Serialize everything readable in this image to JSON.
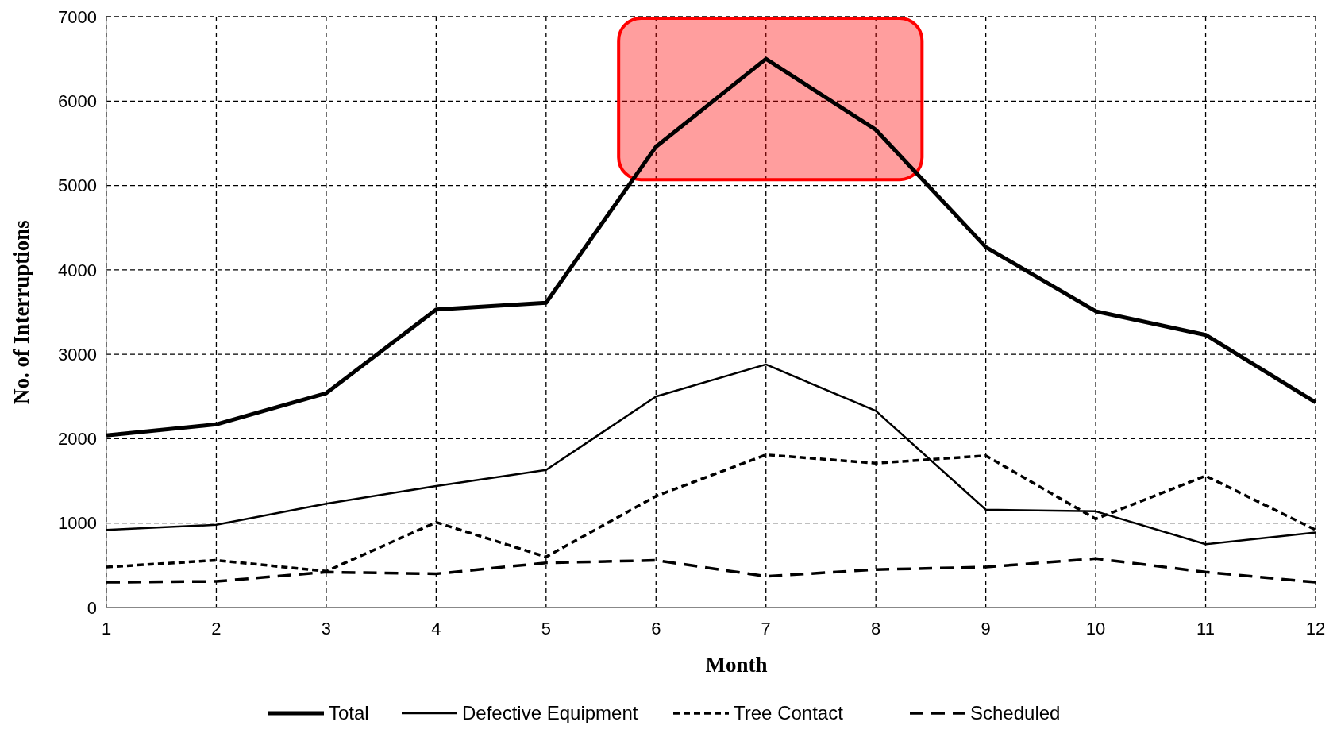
{
  "chart_data": {
    "type": "line",
    "xlabel": "Month",
    "ylabel": "No. of Interruptions",
    "x": [
      1,
      2,
      3,
      4,
      5,
      6,
      7,
      8,
      9,
      10,
      11,
      12
    ],
    "xlim": [
      1,
      12
    ],
    "xticks": [
      1,
      2,
      3,
      4,
      5,
      6,
      7,
      8,
      9,
      10,
      11,
      12
    ],
    "ylim": [
      0,
      7000
    ],
    "yticks": [
      0,
      1000,
      2000,
      3000,
      4000,
      5000,
      6000,
      7000
    ],
    "grid": true,
    "legend": "bottom",
    "marker": "none",
    "series": [
      {
        "name": "Total",
        "color": "#000000",
        "line_style": "solid",
        "values": [
          2040,
          2170,
          2540,
          3530,
          3610,
          5460,
          6500,
          5660,
          4270,
          3510,
          3230,
          2430
        ]
      },
      {
        "name": "Defective Equipment",
        "color": "#000000",
        "line_style": "solid",
        "values": [
          920,
          980,
          1230,
          1440,
          1630,
          2500,
          2880,
          2330,
          1160,
          1140,
          750,
          890
        ]
      },
      {
        "name": "Tree Contact",
        "color": "#000000",
        "line_style": "dotted",
        "values": [
          480,
          560,
          430,
          1010,
          600,
          1320,
          1810,
          1710,
          1800,
          1050,
          1560,
          920
        ]
      },
      {
        "name": "Scheduled",
        "color": "#000000",
        "line_style": "dashed",
        "values": [
          300,
          310,
          420,
          400,
          530,
          560,
          370,
          450,
          480,
          580,
          420,
          300
        ]
      }
    ]
  }
}
